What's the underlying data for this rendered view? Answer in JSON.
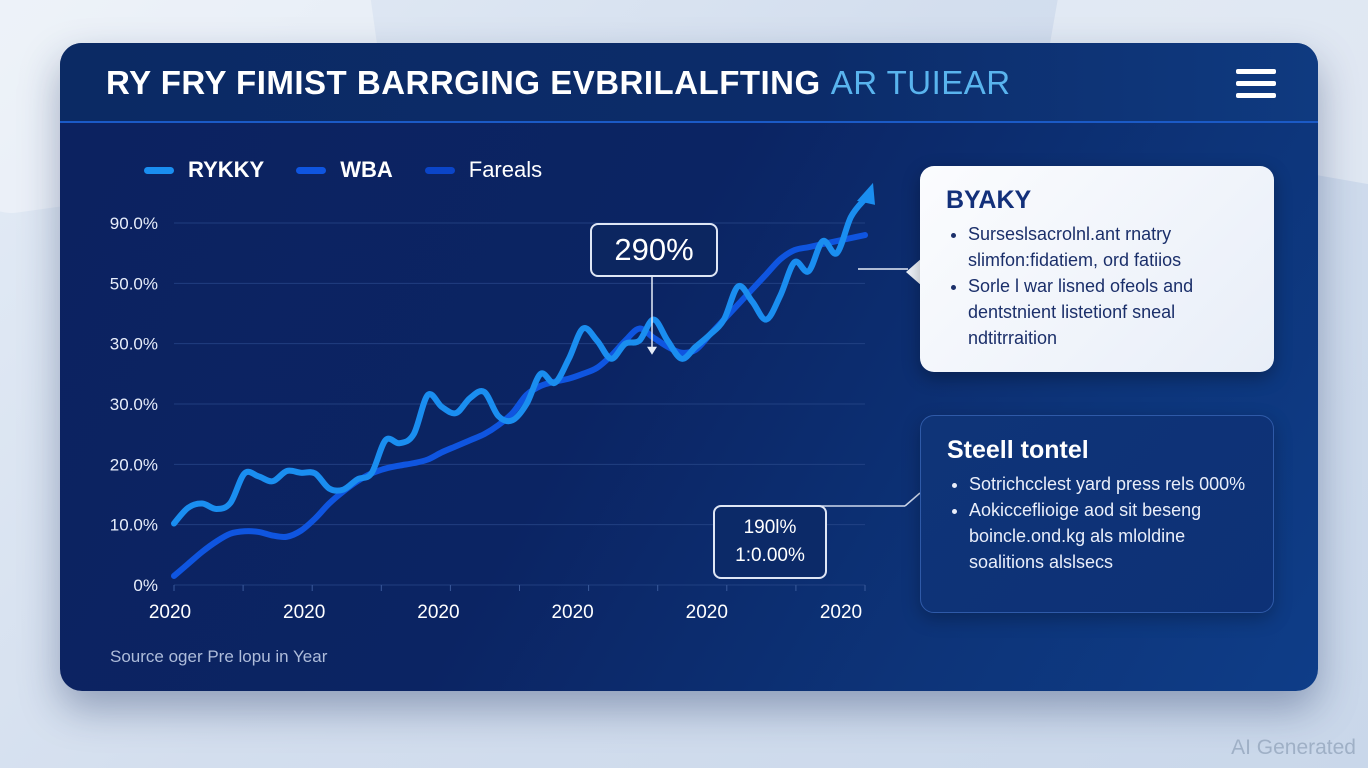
{
  "header": {
    "title": "RY FRY FIMIST BARRGING EVBRILALFTING",
    "title_accent": "AR TUIEAR",
    "menu_icon": "hamburger-menu-icon"
  },
  "legend": [
    {
      "label": "RYKKY",
      "color": "#1a8ef0"
    },
    {
      "label": "WBA",
      "color": "#0f55e0"
    },
    {
      "label": "Fareals",
      "color": "#0b45c8"
    }
  ],
  "chart_data": {
    "type": "line",
    "title": "RY FRY FIMIST BARRGING EVBRILALFTING AR TUIEAR",
    "xlabel": "",
    "ylabel": "",
    "y_tick_labels": [
      "0%",
      "10.0%",
      "20.0%",
      "30.0%",
      "30.0%",
      "50.0%",
      "90.0%"
    ],
    "x_tick_labels": [
      "2020",
      "2020",
      "2020",
      "2020",
      "2020",
      "2020"
    ],
    "ylim": [
      0,
      60
    ],
    "grid": true,
    "legend_position": "top-left",
    "x": [
      0,
      0.5,
      1,
      1.5,
      2,
      2.5,
      3,
      3.5,
      4,
      4.5,
      5,
      5.5,
      6,
      6.5,
      7,
      7.5,
      8,
      8.5,
      9,
      9.5,
      10,
      10.5,
      11,
      11.5,
      12,
      12.5,
      13,
      13.5,
      14,
      14.5,
      15,
      15.5,
      16,
      16.5,
      17,
      17.5,
      18,
      18.5,
      19,
      19.5,
      20,
      20.5,
      21,
      21.5,
      22,
      22.5,
      23,
      23.5,
      24,
      24.5
    ],
    "series": [
      {
        "name": "RYKKY",
        "color": "#1a8ef0",
        "values": [
          10.2,
          12.8,
          13.5,
          12.6,
          13.6,
          18.5,
          18.0,
          17.2,
          18.9,
          18.6,
          18.5,
          16.0,
          15.8,
          17.5,
          18.5,
          24.0,
          23.5,
          25.0,
          31.5,
          29.5,
          28.5,
          31.0,
          32.0,
          28.0,
          27.3,
          30.0,
          35.0,
          33.5,
          37.5,
          42.5,
          40.5,
          37.5,
          40.0,
          40.5,
          44.0,
          40.5,
          37.5,
          39.5,
          41.5,
          44.0,
          49.5,
          47.0,
          44.0,
          48.0,
          53.5,
          52.0,
          57.0,
          55.0,
          61.0,
          64.0
        ]
      },
      {
        "name": "WBA",
        "color": "#0f55e0",
        "values": [
          1.5,
          3.5,
          5.5,
          7.2,
          8.5,
          8.9,
          8.8,
          8.2,
          8.0,
          9.0,
          11.0,
          13.5,
          15.5,
          17.2,
          18.5,
          19.3,
          19.8,
          20.2,
          20.8,
          22.0,
          23.0,
          24.0,
          25.0,
          26.5,
          28.5,
          31.5,
          33.0,
          33.7,
          34.2,
          35.0,
          36.0,
          38.0,
          40.5,
          42.5,
          41.0,
          39.5,
          38.5,
          39.0,
          41.5,
          44.0,
          46.5,
          49.0,
          51.5,
          54.0,
          55.5,
          56.0,
          56.5,
          57.0,
          57.5,
          58.0
        ]
      }
    ],
    "annotations": [
      {
        "text": "290%",
        "target_series": "RYKKY"
      },
      {
        "text": "190l%",
        "text_line2": "1:0.00%"
      }
    ]
  },
  "source_note": "Source oger Pre lopu in Year",
  "panels": [
    {
      "title": "BYAKY",
      "bullets": [
        "Surseslsacrolnl.ant rnatry slimfon:fidatiem, ord fatiios",
        "Sorle l war lisned ofeols and dentstnient listetionf sneal ndtitrraition"
      ]
    },
    {
      "title": "Steell tontel",
      "bullets": [
        "Sotrichcclest yard press rels 000%",
        "Aokicceflioige aod sit beseng boincle.ond.kg als mloldine soalitions alslsecs"
      ]
    }
  ],
  "watermark": "AI Generated"
}
